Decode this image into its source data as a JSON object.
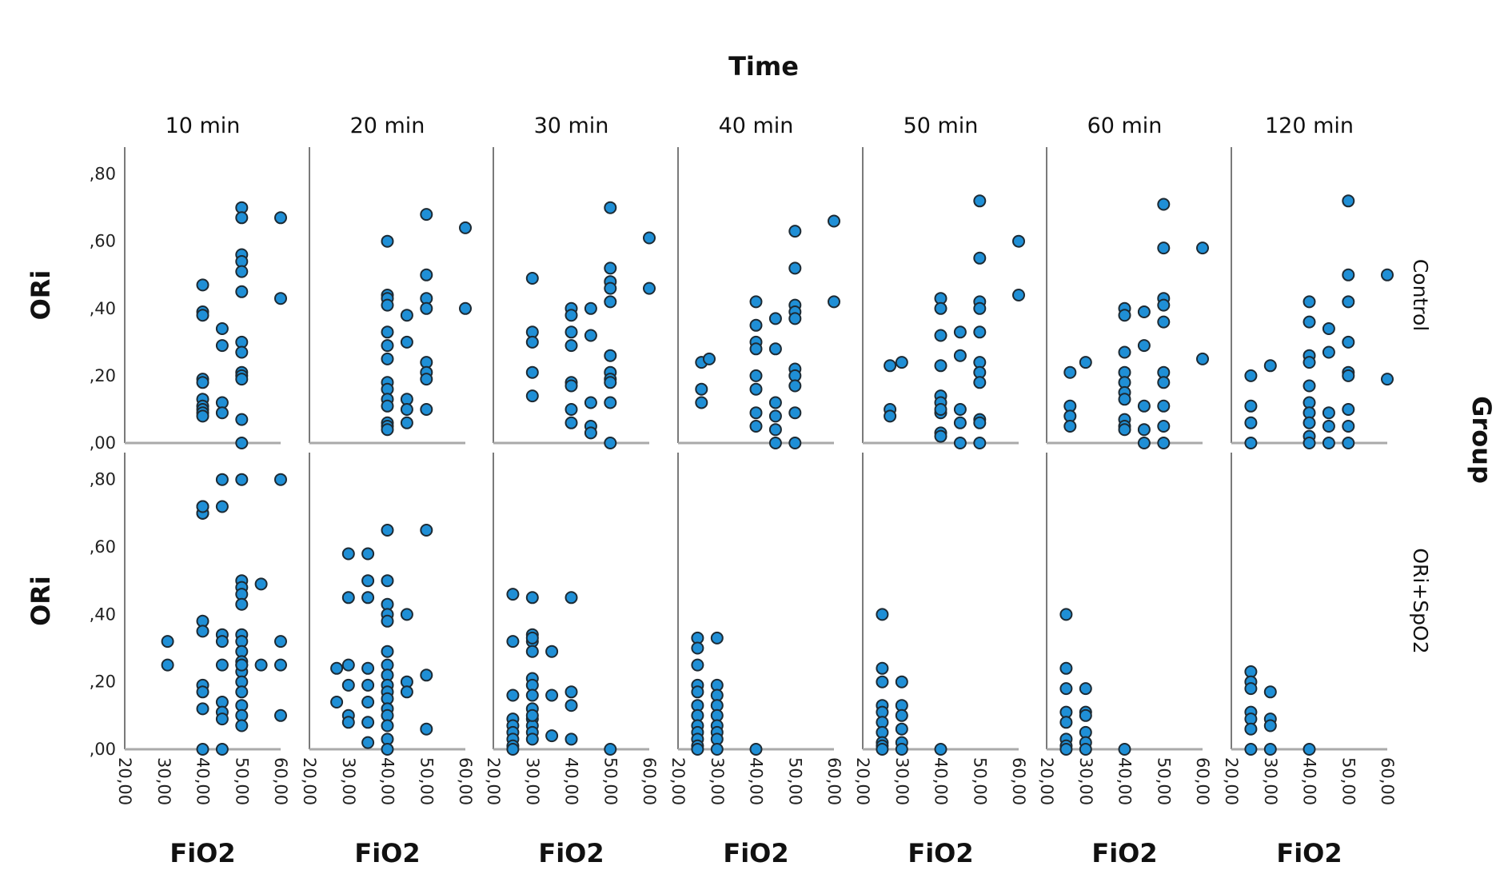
{
  "chart_data": {
    "type": "scatter",
    "title": "Time",
    "column_facet_labels": [
      "10 min",
      "20 min",
      "30 min",
      "40 min",
      "50 min",
      "60 min",
      "120 min"
    ],
    "row_facet_title": "Group",
    "row_facet_labels": [
      "Control",
      "ORi+SpO2"
    ],
    "xlabel": "FiO2",
    "ylabel": "ORi",
    "xlim": [
      20,
      60
    ],
    "ylim": [
      0,
      0.88
    ],
    "x_tick_values": [
      20,
      30,
      40,
      50,
      60
    ],
    "x_tick_labels": [
      "20,00",
      "30,00",
      "40,00",
      "50,00",
      "60,00"
    ],
    "y_tick_values": [
      0,
      0.2,
      0.4,
      0.6,
      0.8
    ],
    "y_tick_labels": [
      ",00",
      ",20",
      ",40",
      ",60",
      ",80"
    ],
    "grid": false,
    "marker_color": "#1f8fd6",
    "panels": [
      {
        "row": "Control",
        "col": "10 min",
        "x": [
          40,
          40,
          40,
          40,
          40,
          40,
          40,
          40,
          40,
          40,
          45,
          45,
          45,
          45,
          50,
          50,
          50,
          50,
          50,
          50,
          50,
          50,
          50,
          50,
          50,
          50,
          50,
          60,
          60
        ],
        "y": [
          0.47,
          0.39,
          0.38,
          0.19,
          0.13,
          0.11,
          0.1,
          0.09,
          0.08,
          0.18,
          0.34,
          0.29,
          0.12,
          0.09,
          0.7,
          0.67,
          0.56,
          0.54,
          0.51,
          0.45,
          0.3,
          0.27,
          0.21,
          0.2,
          0.19,
          0.07,
          0.0,
          0.67,
          0.43
        ]
      },
      {
        "row": "Control",
        "col": "20 min",
        "x": [
          40,
          40,
          40,
          40,
          40,
          40,
          40,
          40,
          40,
          40,
          40,
          40,
          40,
          40,
          45,
          45,
          45,
          45,
          45,
          50,
          50,
          50,
          50,
          50,
          50,
          50,
          50,
          60,
          60
        ],
        "y": [
          0.6,
          0.44,
          0.43,
          0.41,
          0.33,
          0.29,
          0.25,
          0.18,
          0.16,
          0.13,
          0.11,
          0.06,
          0.05,
          0.04,
          0.38,
          0.3,
          0.13,
          0.1,
          0.06,
          0.68,
          0.5,
          0.43,
          0.4,
          0.24,
          0.21,
          0.19,
          0.1,
          0.64,
          0.4
        ]
      },
      {
        "row": "Control",
        "col": "30 min",
        "x": [
          30,
          30,
          30,
          30,
          30,
          40,
          40,
          40,
          40,
          40,
          40,
          40,
          40,
          45,
          45,
          45,
          45,
          45,
          50,
          50,
          50,
          50,
          50,
          50,
          50,
          50,
          50,
          50,
          50,
          60,
          60
        ],
        "y": [
          0.49,
          0.33,
          0.3,
          0.21,
          0.14,
          0.4,
          0.38,
          0.33,
          0.29,
          0.18,
          0.17,
          0.1,
          0.06,
          0.4,
          0.32,
          0.12,
          0.05,
          0.03,
          0.7,
          0.52,
          0.48,
          0.46,
          0.42,
          0.26,
          0.21,
          0.19,
          0.18,
          0.12,
          0.0,
          0.61,
          0.46
        ]
      },
      {
        "row": "Control",
        "col": "40 min",
        "x": [
          26,
          26,
          26,
          28,
          40,
          40,
          40,
          40,
          40,
          40,
          40,
          40,
          45,
          45,
          45,
          45,
          45,
          45,
          50,
          50,
          50,
          50,
          50,
          50,
          50,
          50,
          50,
          50,
          60,
          60
        ],
        "y": [
          0.24,
          0.16,
          0.12,
          0.25,
          0.42,
          0.35,
          0.3,
          0.28,
          0.2,
          0.16,
          0.09,
          0.05,
          0.37,
          0.28,
          0.12,
          0.08,
          0.04,
          0.0,
          0.63,
          0.52,
          0.41,
          0.39,
          0.37,
          0.22,
          0.2,
          0.17,
          0.09,
          0.0,
          0.66,
          0.42
        ]
      },
      {
        "row": "Control",
        "col": "50 min",
        "x": [
          27,
          27,
          27,
          30,
          40,
          40,
          40,
          40,
          40,
          40,
          40,
          40,
          40,
          40,
          45,
          45,
          45,
          45,
          45,
          50,
          50,
          50,
          50,
          50,
          50,
          50,
          50,
          50,
          50,
          50,
          60,
          60
        ],
        "y": [
          0.23,
          0.1,
          0.08,
          0.24,
          0.43,
          0.4,
          0.32,
          0.23,
          0.14,
          0.12,
          0.09,
          0.03,
          0.02,
          0.1,
          0.33,
          0.26,
          0.1,
          0.06,
          0.0,
          0.72,
          0.55,
          0.42,
          0.4,
          0.33,
          0.24,
          0.21,
          0.18,
          0.07,
          0.06,
          0.0,
          0.6,
          0.44
        ]
      },
      {
        "row": "Control",
        "col": "60 min",
        "x": [
          26,
          26,
          26,
          26,
          30,
          40,
          40,
          40,
          40,
          40,
          40,
          40,
          40,
          40,
          40,
          45,
          45,
          45,
          45,
          45,
          50,
          50,
          50,
          50,
          50,
          50,
          50,
          50,
          50,
          50,
          60,
          60
        ],
        "y": [
          0.21,
          0.11,
          0.08,
          0.05,
          0.24,
          0.4,
          0.38,
          0.27,
          0.21,
          0.18,
          0.15,
          0.13,
          0.07,
          0.05,
          0.04,
          0.39,
          0.29,
          0.11,
          0.04,
          0.0,
          0.71,
          0.58,
          0.43,
          0.41,
          0.36,
          0.21,
          0.18,
          0.11,
          0.05,
          0.0,
          0.58,
          0.25
        ]
      },
      {
        "row": "Control",
        "col": "120 min",
        "x": [
          25,
          25,
          25,
          25,
          30,
          40,
          40,
          40,
          40,
          40,
          40,
          40,
          40,
          40,
          40,
          45,
          45,
          45,
          45,
          45,
          50,
          50,
          50,
          50,
          50,
          50,
          50,
          50,
          50,
          60,
          60
        ],
        "y": [
          0.2,
          0.11,
          0.06,
          0.0,
          0.23,
          0.42,
          0.36,
          0.26,
          0.24,
          0.17,
          0.12,
          0.09,
          0.06,
          0.02,
          0.0,
          0.34,
          0.27,
          0.09,
          0.05,
          0.0,
          0.72,
          0.5,
          0.42,
          0.3,
          0.21,
          0.2,
          0.1,
          0.05,
          0.0,
          0.5,
          0.19
        ]
      },
      {
        "row": "ORi+SpO2",
        "col": "10 min",
        "x": [
          31,
          31,
          40,
          40,
          40,
          40,
          40,
          40,
          40,
          40,
          40,
          40,
          45,
          45,
          45,
          45,
          45,
          45,
          45,
          45,
          45,
          50,
          50,
          50,
          50,
          50,
          50,
          50,
          50,
          50,
          50,
          50,
          50,
          50,
          50,
          50,
          50,
          50,
          55,
          55,
          60,
          60,
          60,
          60
        ],
        "y": [
          0.32,
          0.25,
          0.72,
          0.7,
          0.38,
          0.35,
          0.19,
          0.17,
          0.12,
          0.0,
          0.7,
          0.72,
          0.8,
          0.72,
          0.34,
          0.32,
          0.25,
          0.14,
          0.11,
          0.09,
          0.0,
          0.8,
          0.5,
          0.48,
          0.46,
          0.43,
          0.34,
          0.32,
          0.29,
          0.26,
          0.25,
          0.23,
          0.2,
          0.17,
          0.13,
          0.1,
          0.07,
          0.25,
          0.49,
          0.25,
          0.8,
          0.32,
          0.25,
          0.1
        ]
      },
      {
        "row": "ORi+SpO2",
        "col": "20 min",
        "x": [
          27,
          27,
          30,
          30,
          30,
          30,
          30,
          30,
          35,
          35,
          35,
          35,
          35,
          35,
          35,
          35,
          40,
          40,
          40,
          40,
          40,
          40,
          40,
          40,
          40,
          40,
          40,
          40,
          40,
          40,
          40,
          40,
          45,
          45,
          45,
          50,
          50,
          50
        ],
        "y": [
          0.24,
          0.14,
          0.58,
          0.45,
          0.25,
          0.19,
          0.1,
          0.08,
          0.58,
          0.5,
          0.45,
          0.24,
          0.19,
          0.14,
          0.08,
          0.02,
          0.65,
          0.5,
          0.43,
          0.4,
          0.38,
          0.29,
          0.25,
          0.22,
          0.19,
          0.17,
          0.15,
          0.12,
          0.1,
          0.07,
          0.03,
          0.0,
          0.4,
          0.2,
          0.17,
          0.65,
          0.22,
          0.06
        ]
      },
      {
        "row": "ORi+SpO2",
        "col": "30 min",
        "x": [
          25,
          25,
          25,
          25,
          25,
          25,
          25,
          25,
          25,
          30,
          30,
          30,
          30,
          30,
          30,
          30,
          30,
          30,
          30,
          30,
          30,
          30,
          30,
          35,
          35,
          35,
          40,
          40,
          40,
          40,
          50
        ],
        "y": [
          0.46,
          0.32,
          0.16,
          0.09,
          0.07,
          0.05,
          0.03,
          0.01,
          0.0,
          0.45,
          0.34,
          0.32,
          0.29,
          0.21,
          0.19,
          0.16,
          0.12,
          0.09,
          0.07,
          0.05,
          0.03,
          0.1,
          0.33,
          0.29,
          0.16,
          0.04,
          0.45,
          0.17,
          0.13,
          0.03,
          0.0
        ]
      },
      {
        "row": "ORi+SpO2",
        "col": "40 min",
        "x": [
          25,
          25,
          25,
          25,
          25,
          25,
          25,
          25,
          25,
          25,
          25,
          25,
          30,
          30,
          30,
          30,
          30,
          30,
          30,
          30,
          30,
          40
        ],
        "y": [
          0.33,
          0.3,
          0.25,
          0.19,
          0.17,
          0.13,
          0.1,
          0.07,
          0.05,
          0.03,
          0.01,
          0.0,
          0.33,
          0.19,
          0.16,
          0.13,
          0.1,
          0.07,
          0.05,
          0.03,
          0.0,
          0.0
        ]
      },
      {
        "row": "ORi+SpO2",
        "col": "50 min",
        "x": [
          25,
          25,
          25,
          25,
          25,
          25,
          25,
          25,
          25,
          25,
          30,
          30,
          30,
          30,
          30,
          30,
          40
        ],
        "y": [
          0.4,
          0.24,
          0.2,
          0.13,
          0.11,
          0.08,
          0.05,
          0.02,
          0.01,
          0.0,
          0.2,
          0.13,
          0.1,
          0.06,
          0.02,
          0.0,
          0.0
        ]
      },
      {
        "row": "ORi+SpO2",
        "col": "60 min",
        "x": [
          25,
          25,
          25,
          25,
          25,
          25,
          25,
          25,
          30,
          30,
          30,
          30,
          30,
          30,
          40
        ],
        "y": [
          0.4,
          0.24,
          0.18,
          0.11,
          0.08,
          0.03,
          0.01,
          0.0,
          0.18,
          0.11,
          0.1,
          0.05,
          0.02,
          0.0,
          0.0
        ]
      },
      {
        "row": "ORi+SpO2",
        "col": "120 min",
        "x": [
          25,
          25,
          25,
          25,
          25,
          25,
          25,
          30,
          30,
          30,
          30,
          40
        ],
        "y": [
          0.23,
          0.2,
          0.18,
          0.11,
          0.09,
          0.06,
          0.0,
          0.17,
          0.09,
          0.07,
          0.0,
          0.0
        ]
      }
    ]
  }
}
